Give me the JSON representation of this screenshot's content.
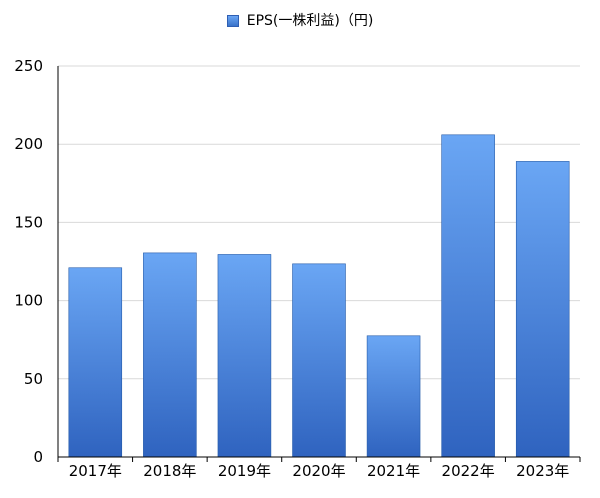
{
  "chart_data": {
    "type": "bar",
    "title": "",
    "xlabel": "",
    "ylabel": "",
    "legend": {
      "position": "top-center"
    },
    "categories": [
      "2017年",
      "2018年",
      "2019年",
      "2020年",
      "2021年",
      "2022年",
      "2023年"
    ],
    "series": [
      {
        "name": "EPS(一株利益)（円)",
        "values": [
          121,
          130.5,
          129.5,
          123.5,
          77.5,
          206,
          189
        ]
      }
    ],
    "ylim": [
      0,
      250
    ],
    "yticks": [
      0,
      50,
      100,
      150,
      200,
      250
    ],
    "grid": true,
    "colors": {
      "bar_top": "#6aa6f4",
      "bar_bottom": "#2f63bf",
      "bar_border": "#245aa8",
      "grid": "#d9d9d9",
      "axis": "#000000"
    }
  }
}
